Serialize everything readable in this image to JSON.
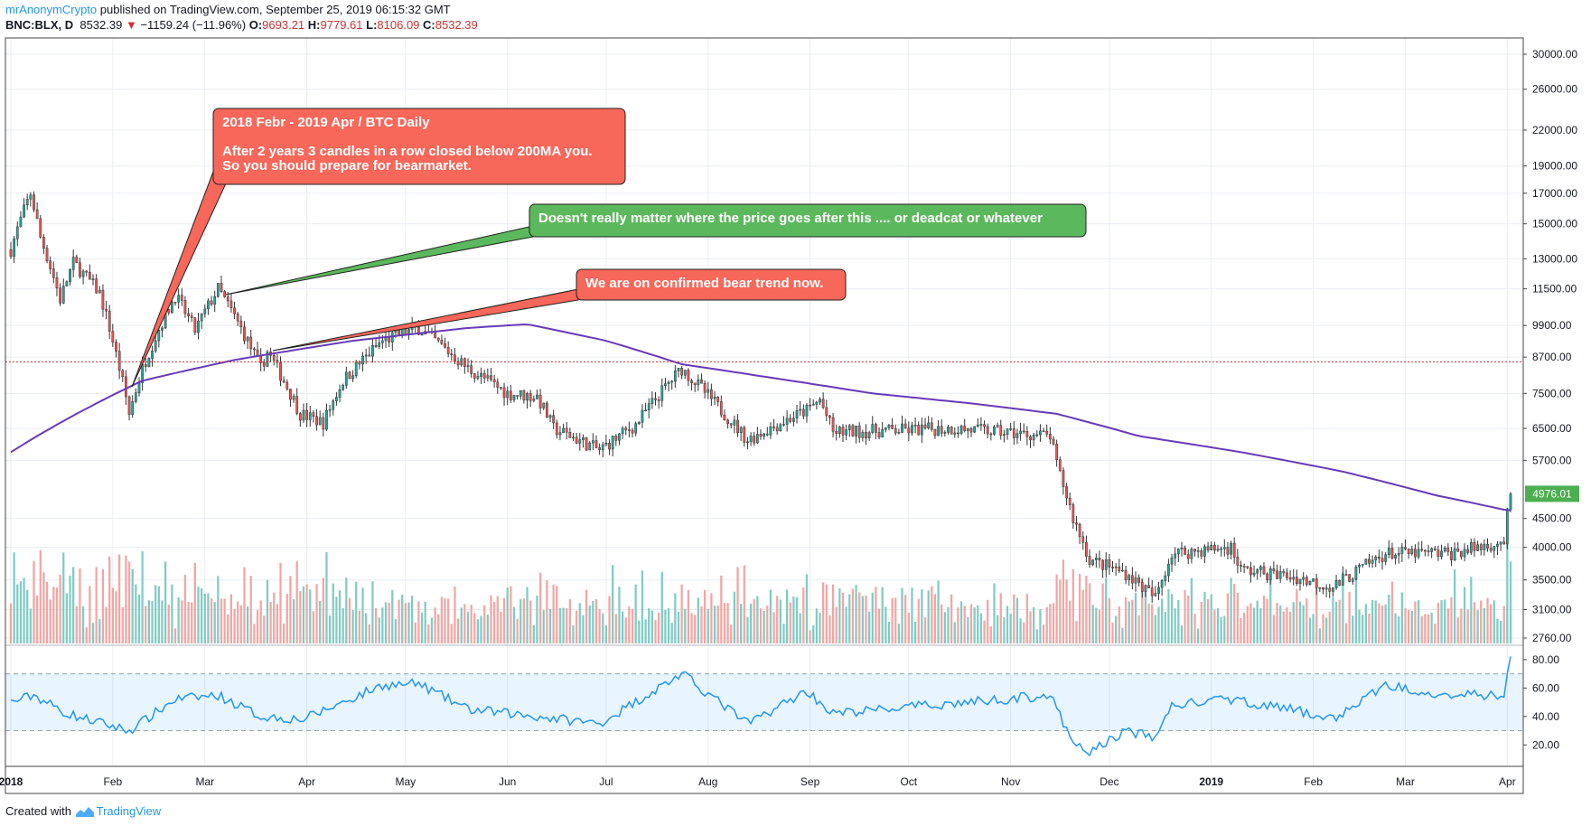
{
  "header": {
    "author": "mrAnonymCrypto",
    "published_text": "published on TradingView.com, September 25, 2019 06:15:32 GMT",
    "symbol": "BNC:BLX, D",
    "last": "8532.39",
    "change_arrow": "▼",
    "change": "−1159.24 (−11.96%)",
    "o_label": "O:",
    "o_value": "9693.21",
    "h_label": "H:",
    "h_value": "9779.61",
    "l_label": "L:",
    "l_value": "8106.09",
    "c_label": "C:",
    "c_value": "8532.39"
  },
  "footer": {
    "created_with": "Created with",
    "brand": "TradingView"
  },
  "colors": {
    "up": "#26a69a",
    "down": "#ef5350",
    "ma": "#673ab7",
    "rsi": "#2196f3",
    "vol_up": "#80cbc4",
    "vol_down": "#f3a5a3",
    "grid": "#e9edf2",
    "callout_red": "#f7675a",
    "callout_green": "#5cb85c",
    "price_tag": "#4caf50"
  },
  "callouts": [
    {
      "id": "callout-1",
      "lines": [
        "2018 Febr - 2019 Apr / BTC Daily",
        "",
        "After 2 years 3 candles in a row closed below 200MA you.",
        "So you should prepare for bearmarket."
      ],
      "color": "red"
    },
    {
      "id": "callout-2",
      "lines": [
        "Doesn't really matter where the price goes after this .... or deadcat or whatever"
      ],
      "color": "green"
    },
    {
      "id": "callout-3",
      "lines": [
        "We are on confirmed bear trend now."
      ],
      "color": "red"
    }
  ],
  "chart_data": {
    "type": "candlestick",
    "title": "BNC:BLX, D",
    "y_scale": "log",
    "ylim": [
      2760,
      30000
    ],
    "y_ticks": [
      "30000.00",
      "26000.00",
      "22000.00",
      "19000.00",
      "17000.00",
      "15000.00",
      "13000.00",
      "11500.00",
      "9900.00",
      "8700.00",
      "7500.00",
      "6500.00",
      "5700.00",
      "4500.00",
      "4000.00",
      "3500.00",
      "3100.00",
      "2760.00"
    ],
    "last_price_label": "4976.01",
    "x_labels": [
      "2018",
      "Feb",
      "Mar",
      "Apr",
      "May",
      "Jun",
      "Jul",
      "Aug",
      "Sep",
      "Oct",
      "Nov",
      "Dec",
      "2019",
      "Feb",
      "Mar",
      "Apr"
    ],
    "price_keyframes": [
      [
        "2018-01-01",
        13500
      ],
      [
        "2018-01-07",
        17000
      ],
      [
        "2018-01-10",
        14200
      ],
      [
        "2018-01-16",
        11000
      ],
      [
        "2018-01-20",
        12800
      ],
      [
        "2018-01-28",
        11300
      ],
      [
        "2018-02-02",
        8800
      ],
      [
        "2018-02-06",
        6900
      ],
      [
        "2018-02-10",
        8300
      ],
      [
        "2018-02-20",
        11200
      ],
      [
        "2018-02-26",
        9700
      ],
      [
        "2018-03-05",
        11500
      ],
      [
        "2018-03-18",
        8300
      ],
      [
        "2018-03-20",
        8900
      ],
      [
        "2018-03-30",
        6900
      ],
      [
        "2018-04-06",
        6650
      ],
      [
        "2018-04-12",
        7900
      ],
      [
        "2018-04-24",
        9300
      ],
      [
        "2018-05-05",
        9800
      ],
      [
        "2018-05-20",
        8300
      ],
      [
        "2018-06-01",
        7500
      ],
      [
        "2018-06-10",
        7400
      ],
      [
        "2018-06-15",
        6500
      ],
      [
        "2018-06-29",
        5950
      ],
      [
        "2018-07-10",
        6600
      ],
      [
        "2018-07-24",
        8300
      ],
      [
        "2018-08-05",
        7000
      ],
      [
        "2018-08-13",
        6200
      ],
      [
        "2018-08-31",
        7000
      ],
      [
        "2018-09-04",
        7300
      ],
      [
        "2018-09-08",
        6400
      ],
      [
        "2018-10-15",
        6500
      ],
      [
        "2018-11-13",
        6300
      ],
      [
        "2018-11-15",
        5600
      ],
      [
        "2018-11-20",
        4500
      ],
      [
        "2018-11-25",
        3800
      ],
      [
        "2018-12-06",
        3600
      ],
      [
        "2018-12-15",
        3250
      ],
      [
        "2018-12-20",
        3900
      ],
      [
        "2019-01-07",
        4000
      ],
      [
        "2019-01-10",
        3650
      ],
      [
        "2019-01-25",
        3550
      ],
      [
        "2019-02-07",
        3400
      ],
      [
        "2019-02-23",
        3900
      ],
      [
        "2019-03-15",
        3900
      ],
      [
        "2019-03-31",
        4100
      ],
      [
        "2019-04-02",
        4976
      ]
    ],
    "ma_label": "200MA",
    "ma_keyframes": [
      [
        "2018-01-01",
        5900
      ],
      [
        "2018-02-10",
        7900
      ],
      [
        "2018-03-10",
        8600
      ],
      [
        "2018-04-15",
        9300
      ],
      [
        "2018-05-20",
        9800
      ],
      [
        "2018-06-07",
        9950
      ],
      [
        "2018-07-01",
        9300
      ],
      [
        "2018-07-24",
        8450
      ],
      [
        "2018-08-20",
        8000
      ],
      [
        "2018-09-20",
        7500
      ],
      [
        "2018-10-20",
        7200
      ],
      [
        "2018-11-15",
        6900
      ],
      [
        "2018-12-10",
        6300
      ],
      [
        "2019-01-10",
        5900
      ],
      [
        "2019-02-10",
        5450
      ],
      [
        "2019-03-10",
        4950
      ],
      [
        "2019-04-01",
        4650
      ]
    ],
    "rsi": {
      "ylim": [
        10,
        85
      ],
      "y_ticks": [
        "80.00",
        "60.00",
        "40.00",
        "20.00"
      ],
      "bands": [
        30,
        70
      ],
      "keyframes": [
        [
          "2018-01-01",
          50
        ],
        [
          "2018-01-08",
          55
        ],
        [
          "2018-01-18",
          42
        ],
        [
          "2018-02-06",
          30
        ],
        [
          "2018-02-20",
          52
        ],
        [
          "2018-03-05",
          55
        ],
        [
          "2018-03-18",
          40
        ],
        [
          "2018-03-31",
          38
        ],
        [
          "2018-04-24",
          62
        ],
        [
          "2018-05-05",
          63
        ],
        [
          "2018-05-20",
          45
        ],
        [
          "2018-06-10",
          40
        ],
        [
          "2018-06-29",
          35
        ],
        [
          "2018-07-24",
          70
        ],
        [
          "2018-08-13",
          35
        ],
        [
          "2018-08-31",
          58
        ],
        [
          "2018-09-08",
          42
        ],
        [
          "2018-11-13",
          55
        ],
        [
          "2018-11-20",
          20
        ],
        [
          "2018-11-25",
          15
        ],
        [
          "2018-12-06",
          30
        ],
        [
          "2018-12-15",
          25
        ],
        [
          "2018-12-20",
          48
        ],
        [
          "2019-01-07",
          52
        ],
        [
          "2019-01-25",
          45
        ],
        [
          "2019-02-07",
          38
        ],
        [
          "2019-02-23",
          62
        ],
        [
          "2019-03-15",
          55
        ],
        [
          "2019-03-31",
          55
        ],
        [
          "2019-04-02",
          82
        ]
      ]
    }
  }
}
